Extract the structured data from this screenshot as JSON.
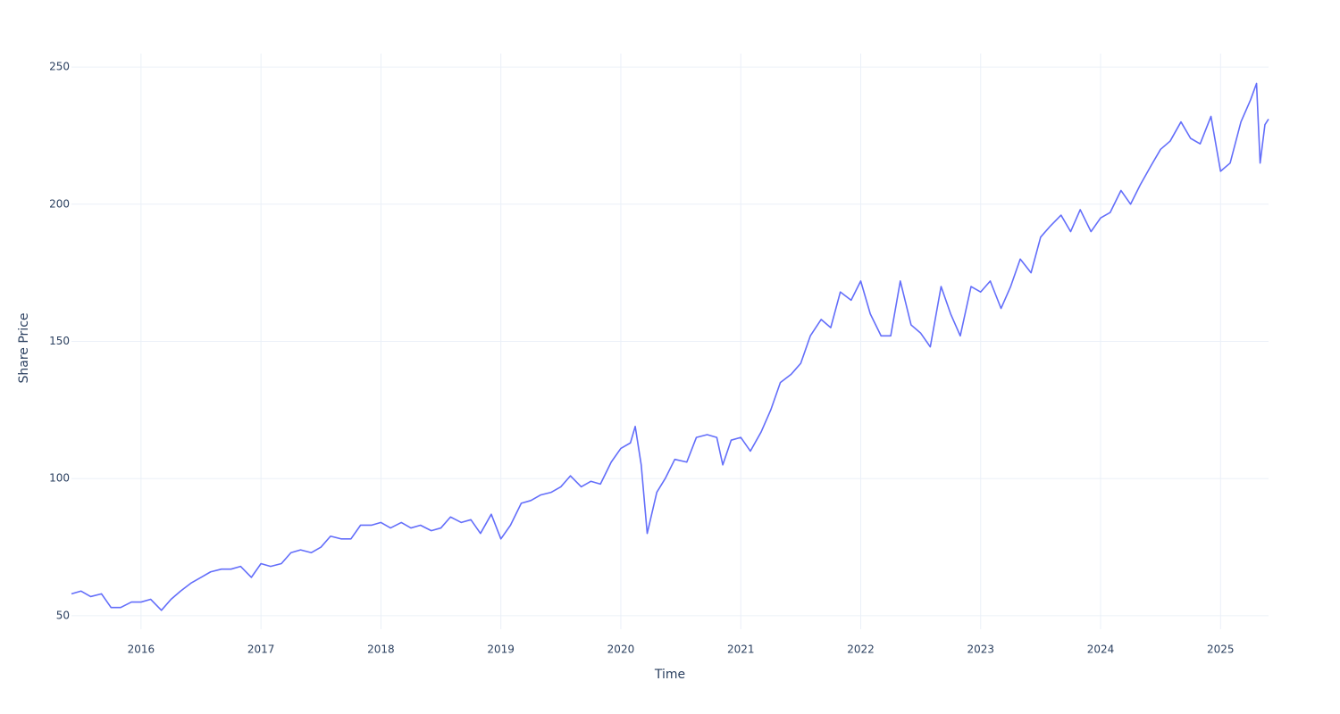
{
  "chart_data": {
    "type": "line",
    "x_label": "Time",
    "y_label": "Share Price",
    "color": "#636efa",
    "grid": true,
    "x": [
      2015.42,
      2015.5,
      2015.58,
      2015.67,
      2015.75,
      2015.83,
      2015.92,
      2016.0,
      2016.08,
      2016.17,
      2016.25,
      2016.33,
      2016.42,
      2016.5,
      2016.58,
      2016.67,
      2016.75,
      2016.83,
      2016.92,
      2017.0,
      2017.08,
      2017.17,
      2017.25,
      2017.33,
      2017.42,
      2017.5,
      2017.58,
      2017.67,
      2017.75,
      2017.83,
      2017.92,
      2018.0,
      2018.08,
      2018.17,
      2018.25,
      2018.33,
      2018.42,
      2018.5,
      2018.58,
      2018.67,
      2018.75,
      2018.83,
      2018.92,
      2019.0,
      2019.08,
      2019.17,
      2019.25,
      2019.33,
      2019.42,
      2019.5,
      2019.58,
      2019.67,
      2019.75,
      2019.83,
      2019.92,
      2020.0,
      2020.08,
      2020.12,
      2020.17,
      2020.22,
      2020.3,
      2020.37,
      2020.45,
      2020.55,
      2020.63,
      2020.72,
      2020.8,
      2020.85,
      2020.92,
      2021.0,
      2021.08,
      2021.17,
      2021.25,
      2021.33,
      2021.42,
      2021.5,
      2021.58,
      2021.67,
      2021.75,
      2021.83,
      2021.92,
      2022.0,
      2022.08,
      2022.17,
      2022.25,
      2022.33,
      2022.42,
      2022.5,
      2022.58,
      2022.67,
      2022.75,
      2022.83,
      2022.92,
      2023.0,
      2023.08,
      2023.17,
      2023.25,
      2023.33,
      2023.42,
      2023.5,
      2023.58,
      2023.67,
      2023.75,
      2023.83,
      2023.92,
      2024.0,
      2024.08,
      2024.17,
      2024.25,
      2024.33,
      2024.42,
      2024.5,
      2024.58,
      2024.67,
      2024.75,
      2024.83,
      2024.92,
      2025.0,
      2025.08,
      2025.17,
      2025.25,
      2025.3,
      2025.33,
      2025.37,
      2025.4
    ],
    "values": [
      58,
      59,
      57,
      58,
      53,
      53,
      55,
      55,
      56,
      52,
      56,
      59,
      62,
      64,
      66,
      67,
      67,
      68,
      64,
      69,
      68,
      69,
      73,
      74,
      73,
      75,
      79,
      78,
      78,
      83,
      83,
      84,
      82,
      84,
      82,
      83,
      81,
      82,
      86,
      84,
      85,
      80,
      87,
      78,
      83,
      91,
      92,
      94,
      95,
      97,
      101,
      97,
      99,
      98,
      106,
      111,
      113,
      119,
      105,
      80,
      95,
      100,
      107,
      106,
      115,
      116,
      115,
      105,
      114,
      115,
      110,
      117,
      125,
      135,
      138,
      142,
      152,
      158,
      155,
      168,
      165,
      172,
      160,
      152,
      152,
      172,
      156,
      153,
      148,
      170,
      160,
      152,
      170,
      168,
      172,
      162,
      170,
      180,
      175,
      188,
      192,
      196,
      190,
      198,
      190,
      195,
      197,
      205,
      200,
      207,
      214,
      220,
      223,
      230,
      224,
      222,
      232,
      212,
      215,
      230,
      238,
      244,
      215,
      229,
      231
    ],
    "xlim": [
      2015.42,
      2025.4
    ],
    "xticks": [
      2016,
      2017,
      2018,
      2019,
      2020,
      2021,
      2022,
      2023,
      2024,
      2025
    ],
    "ylim": [
      45.1,
      254.9
    ],
    "yticks": [
      50,
      100,
      150,
      200,
      250
    ]
  }
}
